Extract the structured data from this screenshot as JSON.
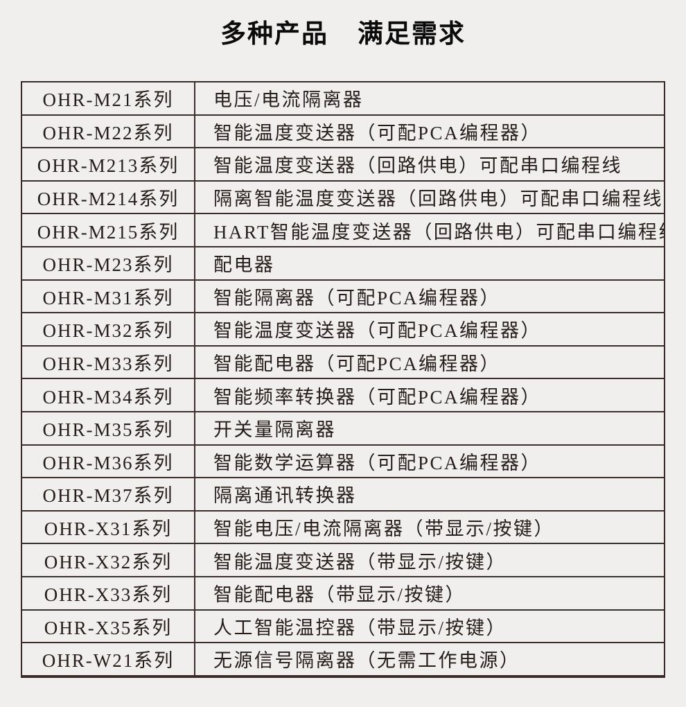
{
  "title": {
    "part1": "多种产品",
    "part2": "满足需求"
  },
  "colors": {
    "background": "#f0efed",
    "border": "#362b27",
    "text": "#261d1a",
    "title_text": "#0b0b0b"
  },
  "table": {
    "column_semantics": [
      "series_name",
      "product_description"
    ],
    "rows": [
      {
        "series": "OHR-M21系列",
        "desc": "电压/电流隔离器"
      },
      {
        "series": "OHR-M22系列",
        "desc": "智能温度变送器（可配PCA编程器）"
      },
      {
        "series": "OHR-M213系列",
        "desc": "智能温度变送器（回路供电）可配串口编程线"
      },
      {
        "series": "OHR-M214系列",
        "desc": "隔离智能温度变送器（回路供电）可配串口编程线"
      },
      {
        "series": "OHR-M215系列",
        "desc": "HART智能温度变送器（回路供电）可配串口编程线"
      },
      {
        "series": "OHR-M23系列",
        "desc": "配电器"
      },
      {
        "series": "OHR-M31系列",
        "desc": "智能隔离器（可配PCA编程器）"
      },
      {
        "series": "OHR-M32系列",
        "desc": "智能温度变送器（可配PCA编程器）"
      },
      {
        "series": "OHR-M33系列",
        "desc": "智能配电器（可配PCA编程器）"
      },
      {
        "series": "OHR-M34系列",
        "desc": "智能频率转换器（可配PCA编程器）"
      },
      {
        "series": "OHR-M35系列",
        "desc": "开关量隔离器"
      },
      {
        "series": "OHR-M36系列",
        "desc": "智能数学运算器（可配PCA编程器）"
      },
      {
        "series": "OHR-M37系列",
        "desc": "隔离通讯转换器"
      },
      {
        "series": "OHR-X31系列",
        "desc": "智能电压/电流隔离器（带显示/按键）"
      },
      {
        "series": "OHR-X32系列",
        "desc": "智能温度变送器（带显示/按键）"
      },
      {
        "series": "OHR-X33系列",
        "desc": "智能配电器（带显示/按键）"
      },
      {
        "series": "OHR-X35系列",
        "desc": "人工智能温控器（带显示/按键）"
      },
      {
        "series": "OHR-W21系列",
        "desc": "无源信号隔离器（无需工作电源）"
      }
    ]
  }
}
